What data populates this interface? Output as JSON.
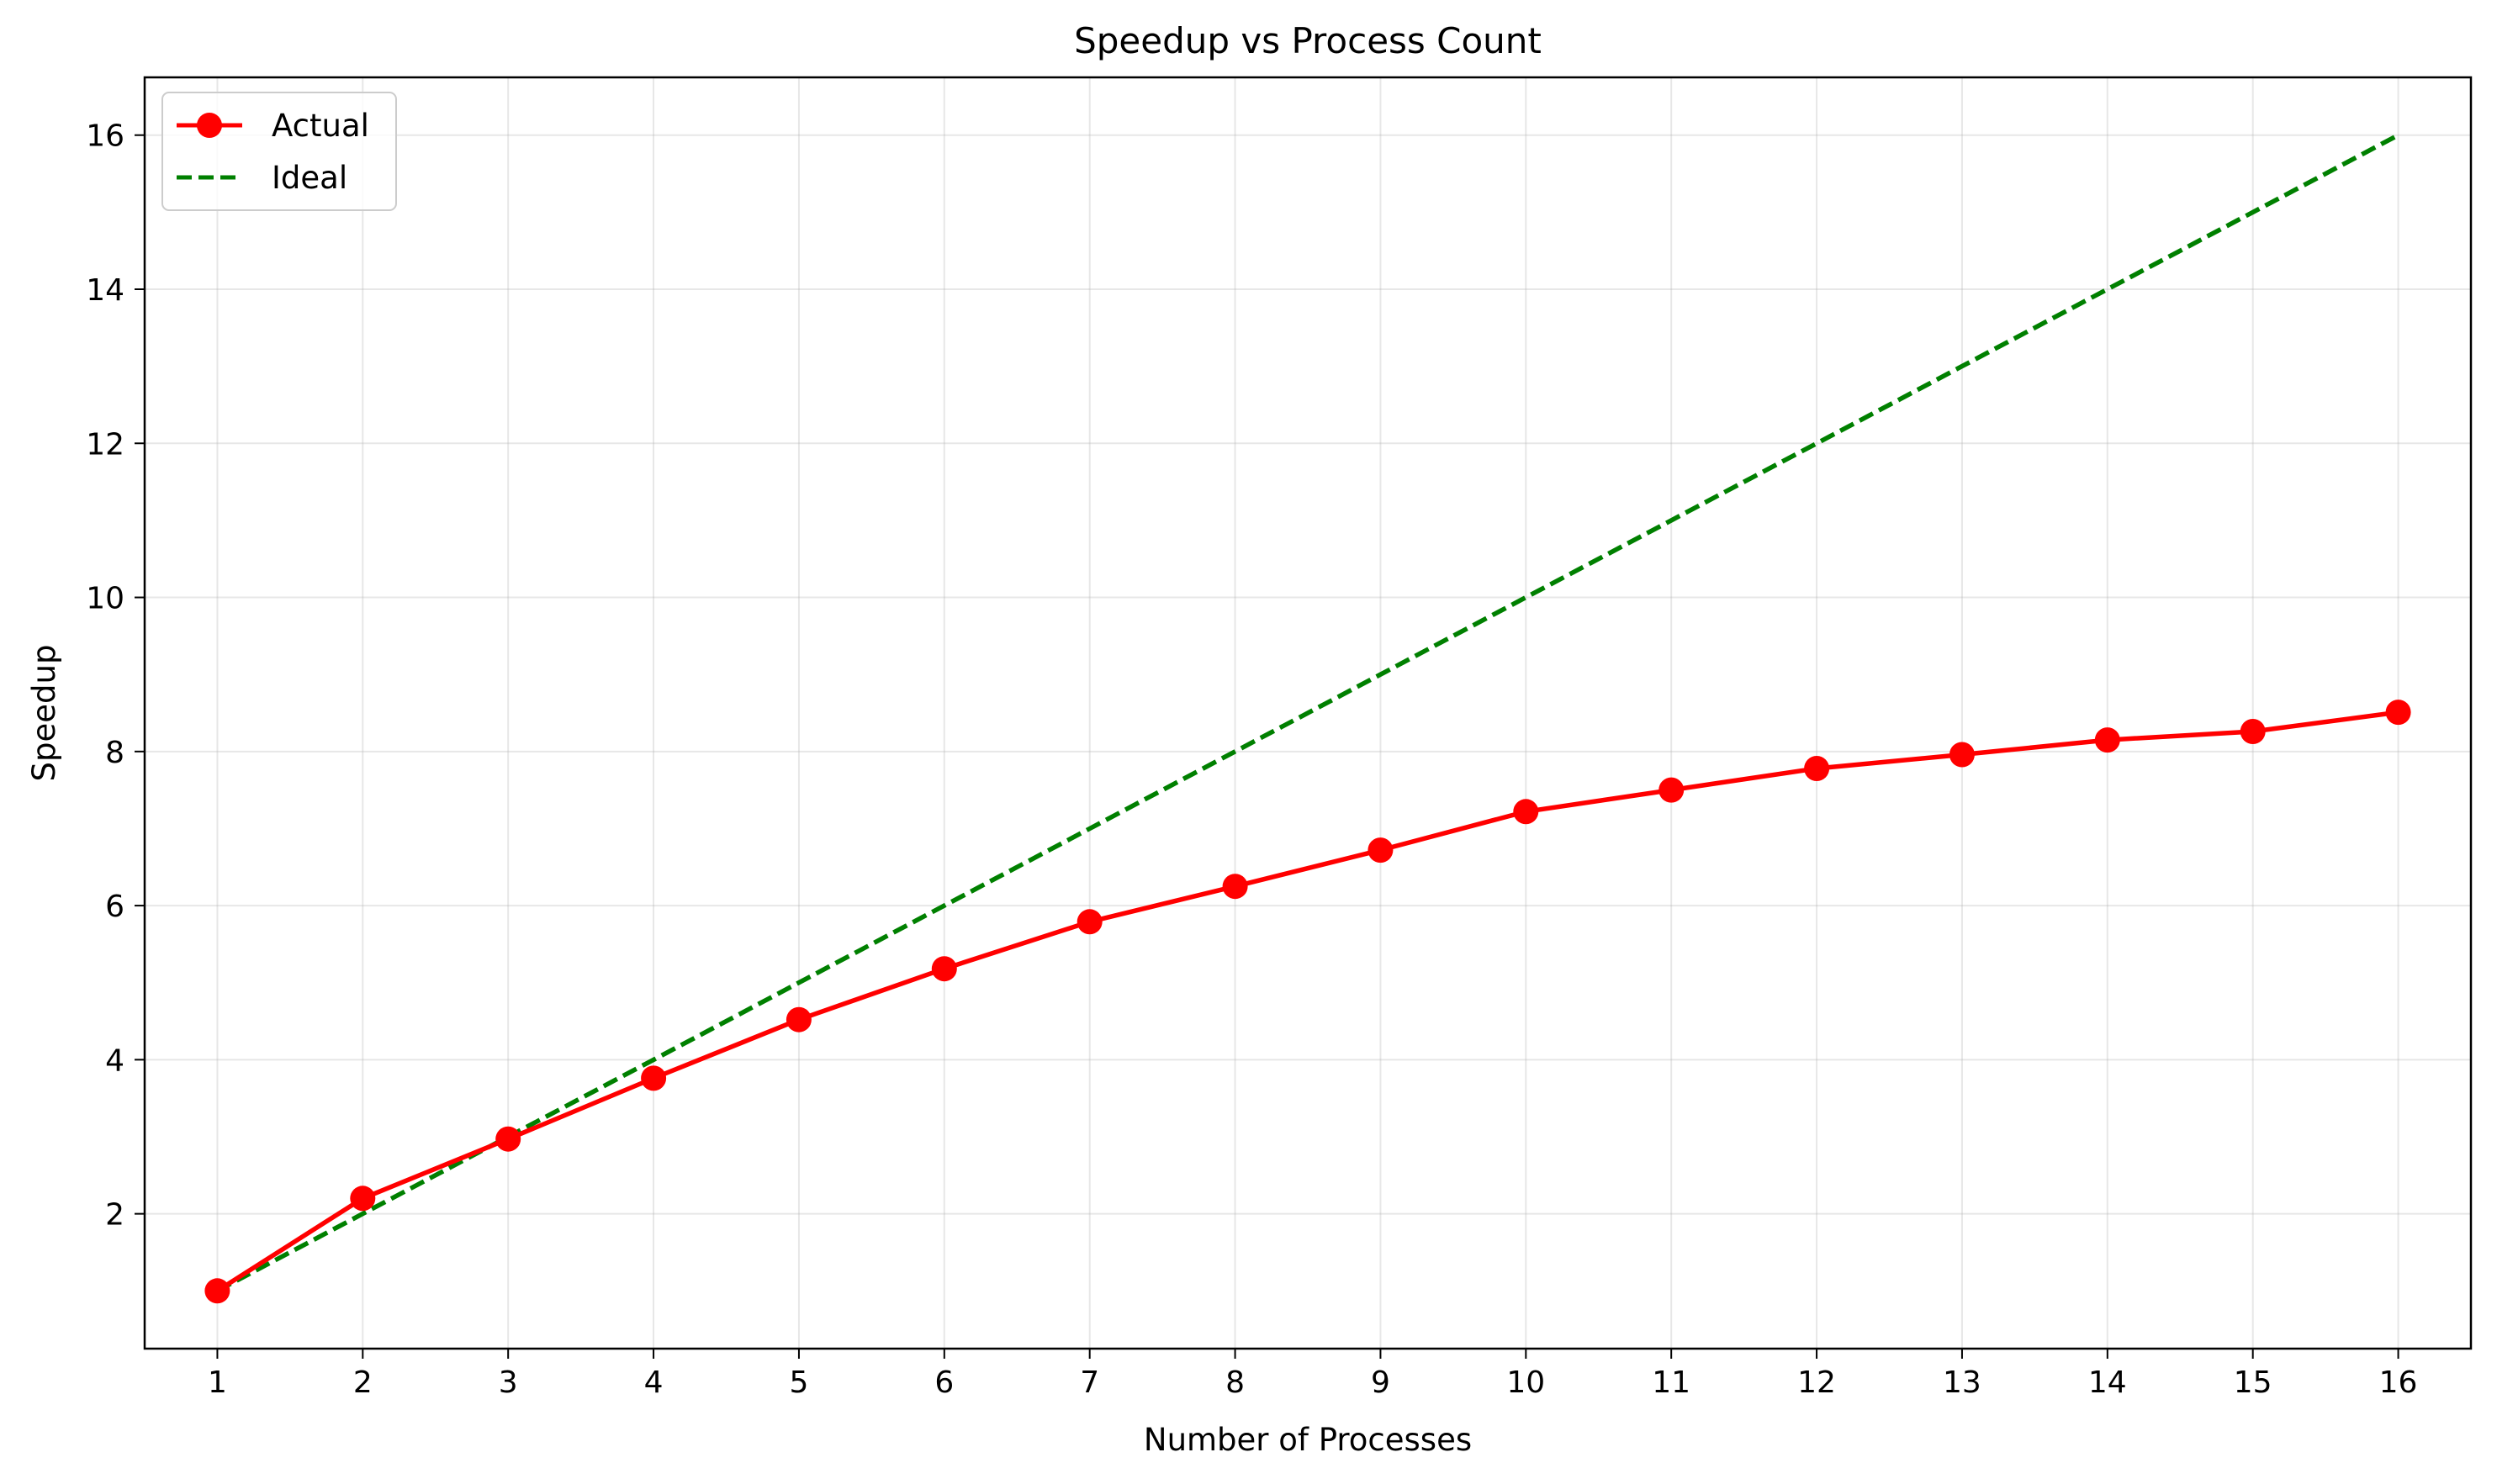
{
  "chart_data": {
    "type": "line",
    "title": "Speedup vs Process Count",
    "xlabel": "Number of Processes",
    "ylabel": "Speedup",
    "x": [
      1,
      2,
      3,
      4,
      5,
      6,
      7,
      8,
      9,
      10,
      11,
      12,
      13,
      14,
      15,
      16
    ],
    "xlim": [
      0.5,
      16.5
    ],
    "ylim": [
      0.25,
      16.75
    ],
    "xticks": [
      "1",
      "2",
      "3",
      "4",
      "5",
      "6",
      "7",
      "8",
      "9",
      "10",
      "11",
      "12",
      "13",
      "14",
      "15",
      "16"
    ],
    "yticks": [
      "2",
      "4",
      "6",
      "8",
      "10",
      "12",
      "14",
      "16"
    ],
    "grid": true,
    "legend_position": "top-left",
    "series": [
      {
        "name": "Actual",
        "color": "#ff0000",
        "style": "solid",
        "marker": "circle",
        "values": [
          1.0,
          2.2,
          2.97,
          3.76,
          4.52,
          5.18,
          5.79,
          6.25,
          6.72,
          7.22,
          7.5,
          7.78,
          7.96,
          8.15,
          8.26,
          8.51
        ]
      },
      {
        "name": "Ideal",
        "color": "#008000",
        "style": "dashed",
        "marker": "none",
        "values": [
          1,
          2,
          3,
          4,
          5,
          6,
          7,
          8,
          9,
          10,
          11,
          12,
          13,
          14,
          15,
          16
        ]
      }
    ]
  }
}
